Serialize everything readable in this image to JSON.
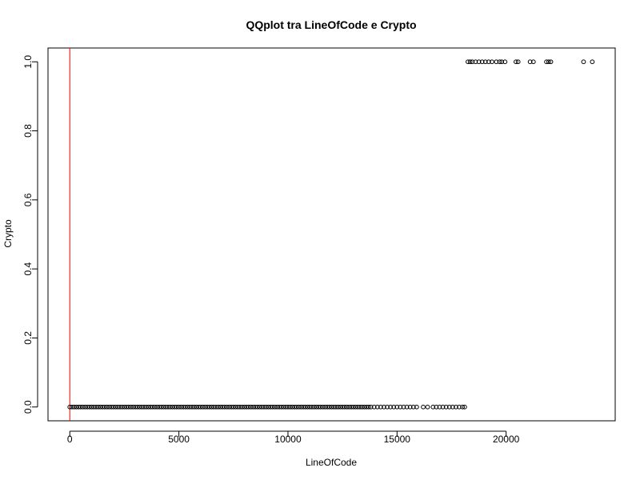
{
  "chart_data": {
    "type": "scatter",
    "title": "QQplot tra LineOfCode e Crypto",
    "xlabel": "LineOfCode",
    "ylabel": "Crypto",
    "xlim": [
      -1000,
      25000
    ],
    "ylim": [
      -0.04,
      1.04
    ],
    "x_ticks": [
      0,
      5000,
      10000,
      15000,
      20000
    ],
    "x_tick_labels": [
      "0",
      "5000",
      "10000",
      "15000",
      "20000"
    ],
    "y_ticks": [
      0.0,
      0.2,
      0.4,
      0.6,
      0.8,
      1.0
    ],
    "y_tick_labels": [
      "0.0",
      "0.2",
      "0.4",
      "0.6",
      "0.8",
      "1.0"
    ],
    "grid": false,
    "legend": "none",
    "point_color": "#000000",
    "reference_line": {
      "orientation": "vertical",
      "x": 0,
      "color": "#ff0000"
    },
    "series": [
      {
        "marker": "open-circle",
        "x": [
          0,
          100,
          200,
          300,
          400,
          500,
          600,
          700,
          800,
          900,
          1000,
          1100,
          1200,
          1300,
          1400,
          1500,
          1600,
          1700,
          1800,
          1900,
          2000,
          2100,
          2200,
          2300,
          2400,
          2500,
          2600,
          2700,
          2800,
          2900,
          3000,
          3100,
          3200,
          3300,
          3400,
          3500,
          3600,
          3700,
          3800,
          3900,
          4000,
          4100,
          4200,
          4300,
          4400,
          4500,
          4600,
          4700,
          4800,
          4900,
          5000,
          5100,
          5200,
          5300,
          5400,
          5500,
          5600,
          5700,
          5800,
          5900,
          6000,
          6100,
          6200,
          6300,
          6400,
          6500,
          6600,
          6700,
          6800,
          6900,
          7000,
          7100,
          7200,
          7300,
          7400,
          7500,
          7600,
          7700,
          7800,
          7900,
          8000,
          8100,
          8200,
          8300,
          8400,
          8500,
          8600,
          8700,
          8800,
          8900,
          9000,
          9100,
          9200,
          9300,
          9400,
          9500,
          9600,
          9700,
          9800,
          9900,
          10000,
          10100,
          10200,
          10300,
          10400,
          10500,
          10600,
          10700,
          10800,
          10900,
          11000,
          11100,
          11200,
          11300,
          11400,
          11500,
          11600,
          11700,
          11800,
          11900,
          12000,
          12100,
          12200,
          12300,
          12400,
          12500,
          12600,
          12700,
          12800,
          12900,
          13000,
          13100,
          13200,
          13300,
          13400,
          13500,
          13600,
          13700,
          13800,
          13950,
          14100,
          14250,
          14400,
          14550,
          14700,
          14850,
          15000,
          15150,
          15300,
          15450,
          15600,
          15750,
          15900,
          16200,
          16400,
          16650,
          16800,
          16950,
          17100,
          17250,
          17400,
          17550,
          17700,
          17850,
          18000,
          18100,
          18250,
          18350,
          18450,
          18600,
          18750,
          18900,
          19050,
          19200,
          19350,
          19550,
          19700,
          19800,
          19950,
          20450,
          20550,
          21100,
          21250,
          21850,
          21950,
          22050,
          23550,
          23950
        ],
        "y": [
          0,
          0,
          0,
          0,
          0,
          0,
          0,
          0,
          0,
          0,
          0,
          0,
          0,
          0,
          0,
          0,
          0,
          0,
          0,
          0,
          0,
          0,
          0,
          0,
          0,
          0,
          0,
          0,
          0,
          0,
          0,
          0,
          0,
          0,
          0,
          0,
          0,
          0,
          0,
          0,
          0,
          0,
          0,
          0,
          0,
          0,
          0,
          0,
          0,
          0,
          0,
          0,
          0,
          0,
          0,
          0,
          0,
          0,
          0,
          0,
          0,
          0,
          0,
          0,
          0,
          0,
          0,
          0,
          0,
          0,
          0,
          0,
          0,
          0,
          0,
          0,
          0,
          0,
          0,
          0,
          0,
          0,
          0,
          0,
          0,
          0,
          0,
          0,
          0,
          0,
          0,
          0,
          0,
          0,
          0,
          0,
          0,
          0,
          0,
          0,
          0,
          0,
          0,
          0,
          0,
          0,
          0,
          0,
          0,
          0,
          0,
          0,
          0,
          0,
          0,
          0,
          0,
          0,
          0,
          0,
          0,
          0,
          0,
          0,
          0,
          0,
          0,
          0,
          0,
          0,
          0,
          0,
          0,
          0,
          0,
          0,
          0,
          0,
          0,
          0,
          0,
          0,
          0,
          0,
          0,
          0,
          0,
          0,
          0,
          0,
          0,
          0,
          0,
          0,
          0,
          0,
          0,
          0,
          0,
          0,
          0,
          0,
          0,
          0,
          0,
          0,
          1,
          1,
          1,
          1,
          1,
          1,
          1,
          1,
          1,
          1,
          1,
          1,
          1,
          1,
          1,
          1,
          1,
          1,
          1,
          1,
          1,
          1
        ]
      }
    ]
  }
}
